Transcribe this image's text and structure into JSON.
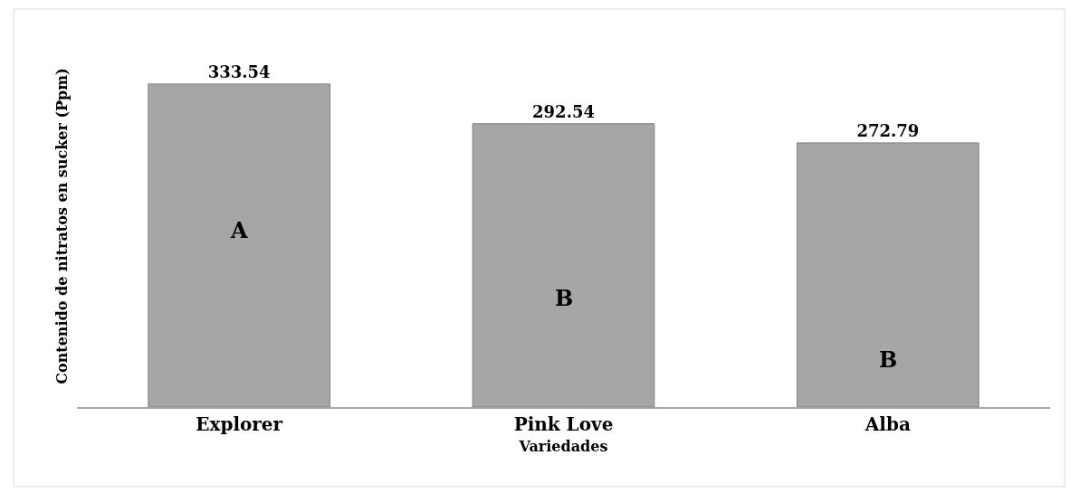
{
  "chart_data": {
    "type": "bar",
    "xlabel": "Variedades",
    "ylabel": "Contenido de nitratos en sucker (Ppm)",
    "categories": [
      "Explorer",
      "Pink Love",
      "Alba"
    ],
    "values": [
      333.54,
      292.54,
      272.79
    ],
    "color": "#a6a6a6",
    "data_labels": true,
    "legend": false,
    "annotations": [
      "A",
      "B",
      "B"
    ]
  }
}
